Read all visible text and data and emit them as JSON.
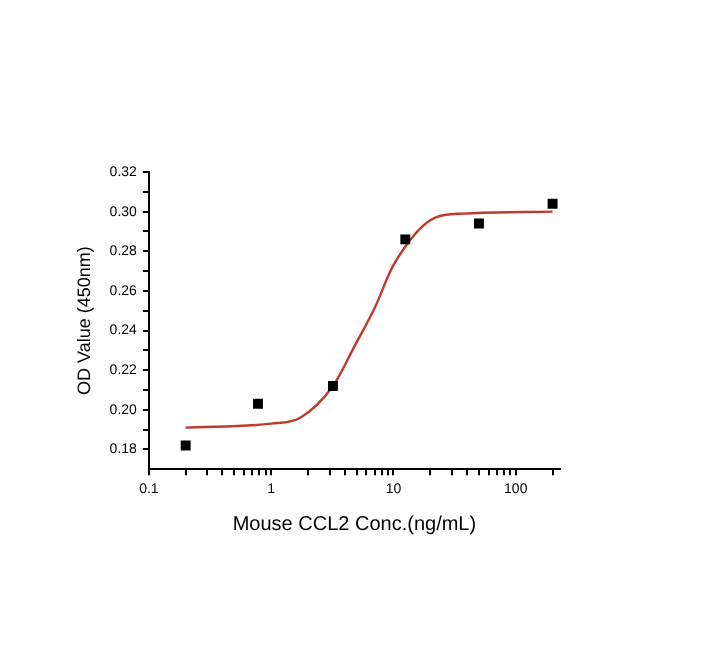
{
  "chart_data": {
    "type": "scatter",
    "xlabel": "Mouse CCL2 Conc.(ng/mL)",
    "ylabel": "OD Value (450nm)",
    "log": "x",
    "marker": "square",
    "grid": false,
    "legend": false,
    "xlim": [
      0.1,
      230
    ],
    "xticks": [
      0.1,
      {
        "value": 0.2,
        "label": null
      },
      {
        "value": 0.3,
        "label": null
      },
      {
        "value": 0.4,
        "label": null
      },
      {
        "value": 0.5,
        "label": null
      },
      {
        "value": 0.6,
        "label": null
      },
      {
        "value": 0.7,
        "label": null
      },
      {
        "value": 0.8,
        "label": null
      },
      {
        "value": 0.9,
        "label": null
      },
      1,
      {
        "value": 2,
        "label": null
      },
      {
        "value": 3,
        "label": null
      },
      {
        "value": 4,
        "label": null
      },
      {
        "value": 5,
        "label": null
      },
      {
        "value": 6,
        "label": null
      },
      {
        "value": 7,
        "label": null
      },
      {
        "value": 8,
        "label": null
      },
      {
        "value": 9,
        "label": null
      },
      10,
      {
        "value": 20,
        "label": null
      },
      {
        "value": 30,
        "label": null
      },
      {
        "value": 40,
        "label": null
      },
      {
        "value": 50,
        "label": null
      },
      {
        "value": 60,
        "label": null
      },
      {
        "value": 70,
        "label": null
      },
      {
        "value": 80,
        "label": null
      },
      {
        "value": 90,
        "label": null
      },
      100,
      {
        "value": 200,
        "label": null
      }
    ],
    "ylim": [
      0.17,
      0.32
    ],
    "yticks": [
      0.18,
      {
        "value": 0.19,
        "label": null
      },
      {
        "value": 0.2,
        "label": "0.20"
      },
      {
        "value": 0.21,
        "label": null
      },
      0.22,
      {
        "value": 0.23,
        "label": null
      },
      0.24,
      {
        "value": 0.25,
        "label": null
      },
      0.26,
      {
        "value": 0.27,
        "label": null
      },
      0.28,
      {
        "value": 0.29,
        "label": null
      },
      {
        "value": 0.3,
        "label": "0.30"
      },
      {
        "value": 0.31,
        "label": null
      },
      0.32
    ],
    "series": [
      {
        "color": "#000000",
        "x": [
          0.2,
          0.78,
          3.2,
          12.5,
          50,
          200
        ],
        "values": [
          0.182,
          0.203,
          0.212,
          0.286,
          0.294,
          0.304
        ]
      },
      {
        "type": "line",
        "color": "#c0392b",
        "marker": "none",
        "x": [
          0.2,
          1,
          1.73,
          3.2,
          4.8,
          7.1,
          10,
          22,
          37,
          200
        ],
        "values": [
          0.191,
          0.193,
          0.196,
          0.212,
          0.232,
          0.252,
          0.273,
          0.297,
          0.299,
          0.3
        ]
      }
    ]
  }
}
